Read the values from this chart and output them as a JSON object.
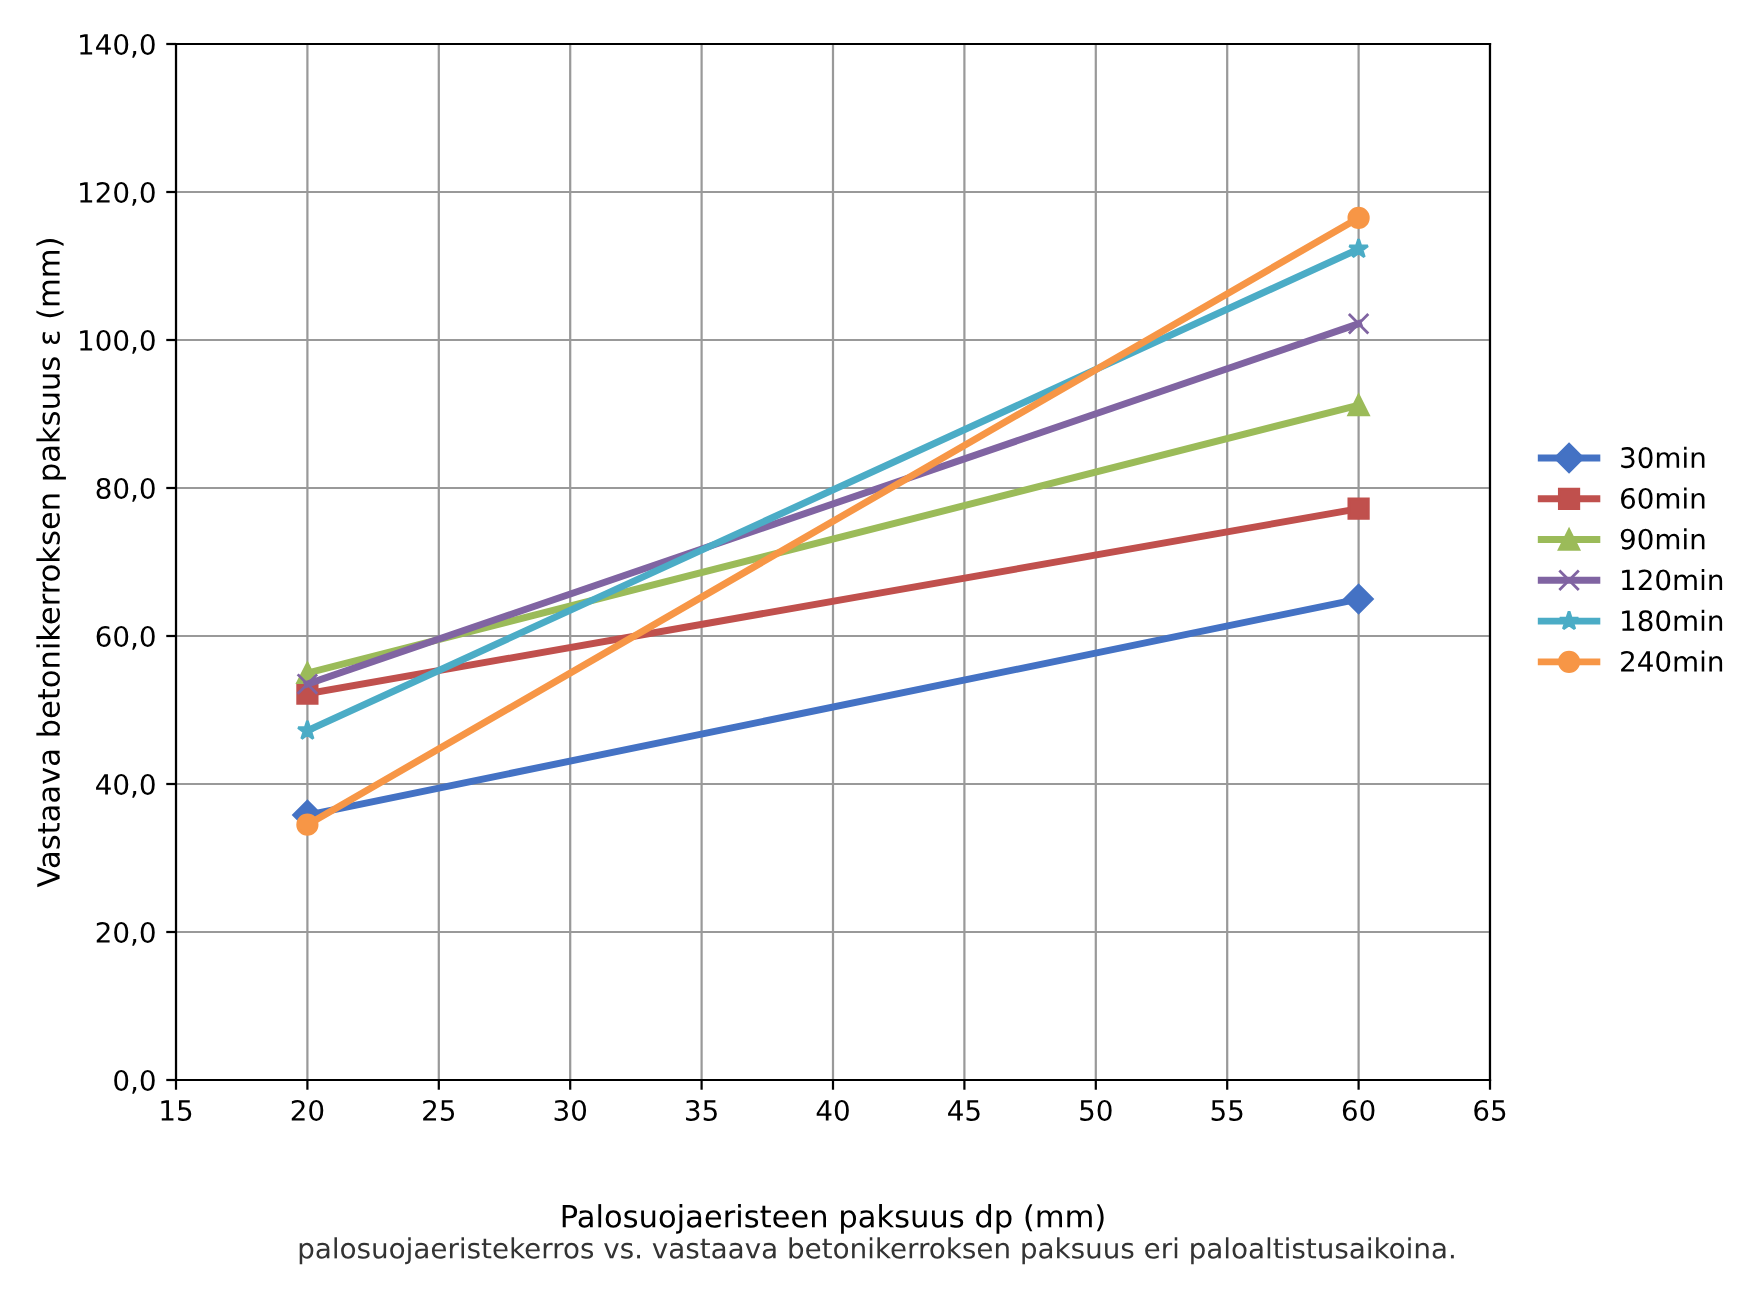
{
  "chart_data": {
    "type": "line",
    "xlabel": "Palosuojaeristeen paksuus dp (mm)",
    "ylabel": "Vastaava betonikerroksen paksuus ε (mm)",
    "annotations": [
      "palosuojaeristekerros vs. vastaava betonikerroksen paksuus eri paloaltistusaikoina."
    ],
    "x": [
      20,
      60
    ],
    "series": [
      {
        "name": "30min",
        "color": "#4472c4",
        "marker": "diamond",
        "values": [
          35.8,
          65.0
        ]
      },
      {
        "name": "60min",
        "color": "#c0504d",
        "marker": "square",
        "values": [
          52.2,
          77.2
        ]
      },
      {
        "name": "90min",
        "color": "#9bbb59",
        "marker": "triangle",
        "values": [
          55.0,
          91.2
        ]
      },
      {
        "name": "120min",
        "color": "#8064a2",
        "marker": "cross",
        "values": [
          53.5,
          102.2
        ]
      },
      {
        "name": "180min",
        "color": "#4bacc6",
        "marker": "star",
        "values": [
          47.2,
          112.3
        ]
      },
      {
        "name": "240min",
        "color": "#f79646",
        "marker": "circle",
        "values": [
          34.5,
          116.5
        ]
      }
    ],
    "xlim": [
      15,
      65
    ],
    "xticks": [
      15,
      20,
      25,
      30,
      35,
      40,
      45,
      50,
      55,
      60,
      65
    ],
    "ylim": [
      0,
      140
    ],
    "yticks": [
      {
        "value": 0,
        "label": "0,0"
      },
      {
        "value": 20,
        "label": "20,0"
      },
      {
        "value": 40,
        "label": "40,0"
      },
      {
        "value": 60,
        "label": "60,0"
      },
      {
        "value": 80,
        "label": "80,0"
      },
      {
        "value": 100,
        "label": "100,0"
      },
      {
        "value": 120,
        "label": "120,0"
      },
      {
        "value": 140,
        "label": "140,0"
      }
    ],
    "grid": true,
    "legend": "right",
    "line_style": "solid"
  }
}
